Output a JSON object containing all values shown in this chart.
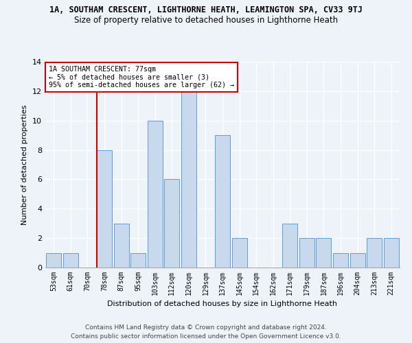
{
  "title": "1A, SOUTHAM CRESCENT, LIGHTHORNE HEATH, LEAMINGTON SPA, CV33 9TJ",
  "subtitle": "Size of property relative to detached houses in Lighthorne Heath",
  "xlabel": "Distribution of detached houses by size in Lighthorne Heath",
  "ylabel": "Number of detached properties",
  "categories": [
    "53sqm",
    "61sqm",
    "70sqm",
    "78sqm",
    "87sqm",
    "95sqm",
    "103sqm",
    "112sqm",
    "120sqm",
    "129sqm",
    "137sqm",
    "145sqm",
    "154sqm",
    "162sqm",
    "171sqm",
    "179sqm",
    "187sqm",
    "196sqm",
    "204sqm",
    "213sqm",
    "221sqm"
  ],
  "values": [
    1,
    1,
    0,
    8,
    3,
    1,
    10,
    6,
    12,
    0,
    9,
    2,
    0,
    0,
    3,
    2,
    2,
    1,
    1,
    2,
    2
  ],
  "bar_color": "#c8d9ee",
  "bar_edge_color": "#5b9bd5",
  "background_color": "#eef2f9",
  "grid_color": "#ffffff",
  "vline_x_index": 3,
  "vline_color": "#cc0000",
  "annotation_text": "1A SOUTHAM CRESCENT: 77sqm\n← 5% of detached houses are smaller (3)\n95% of semi-detached houses are larger (62) →",
  "annotation_box_color": "#ffffff",
  "annotation_box_edge": "#cc0000",
  "ylim": [
    0,
    14
  ],
  "yticks": [
    0,
    2,
    4,
    6,
    8,
    10,
    12,
    14
  ],
  "footer_line1": "Contains HM Land Registry data © Crown copyright and database right 2024.",
  "footer_line2": "Contains public sector information licensed under the Open Government Licence v3.0."
}
